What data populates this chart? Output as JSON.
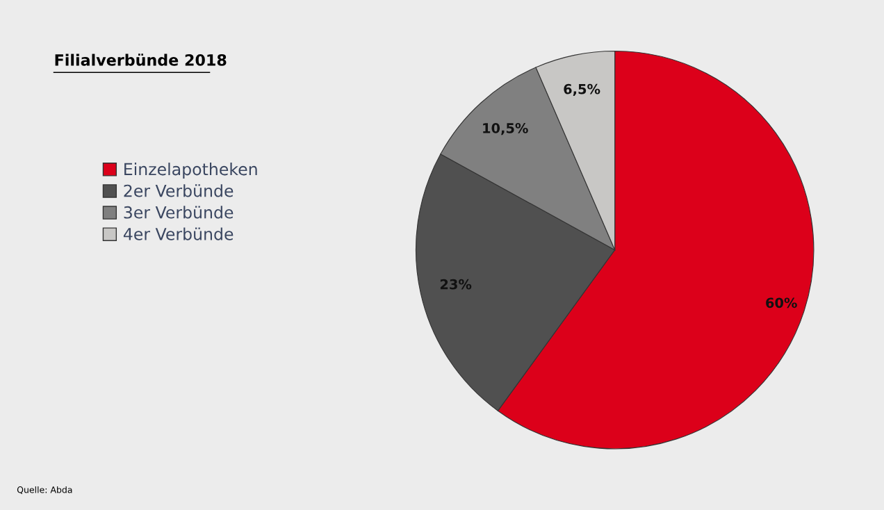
{
  "chart_data": {
    "type": "pie",
    "title": "Filialverbünde 2018",
    "categories": [
      "Einzelapotheken",
      "2er Verbünde",
      "3er Verbünde",
      "4er Verbünde"
    ],
    "values": [
      60,
      23,
      10.5,
      6.5
    ],
    "value_labels": [
      "60%",
      "23%",
      "10,5%",
      "6,5%"
    ],
    "colors": [
      "#dc001a",
      "#505050",
      "#808080",
      "#c8c7c5"
    ],
    "legend": "left",
    "annotations": [
      "Quelle: Abda"
    ]
  }
}
